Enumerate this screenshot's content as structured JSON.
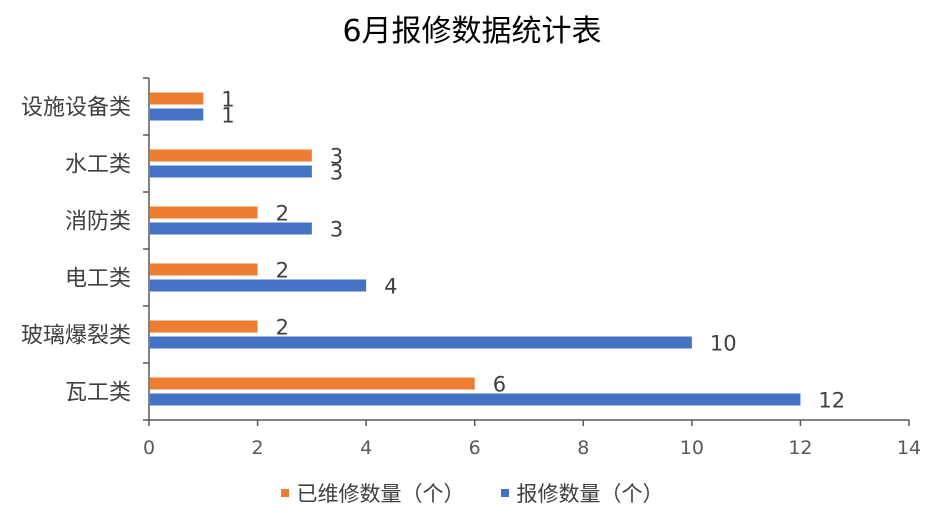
{
  "chart_data": {
    "type": "bar",
    "orientation": "horizontal",
    "title": "6月报修数据统计表",
    "categories": [
      "设施设备类",
      "水工类",
      "消防类",
      "电工类",
      "玻璃爆裂类",
      "瓦工类"
    ],
    "series": [
      {
        "name": "已维修数量（个）",
        "color": "#ED7D31",
        "values": [
          1,
          3,
          2,
          2,
          2,
          6
        ]
      },
      {
        "name": "报修数量（个）",
        "color": "#4472C4",
        "values": [
          1,
          3,
          3,
          4,
          10,
          12
        ]
      }
    ],
    "xlim": [
      0,
      14
    ],
    "xticks": [
      "0",
      "2",
      "4",
      "6",
      "8",
      "10",
      "12",
      "14"
    ],
    "grid": false,
    "legend_position": "bottom",
    "data_labels": true
  }
}
